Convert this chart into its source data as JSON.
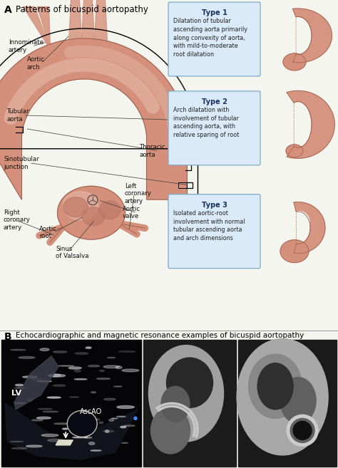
{
  "panel_A_label": "A",
  "panel_A_title": "Patterns of bicuspid aortopathy",
  "panel_B_label": "B",
  "panel_B_title": "Echocardiographic and magnetic resonance examples of bicuspid aortopathy",
  "type1_title": "Type 1",
  "type1_text": "Dilatation of tubular\nascending aorta primarily\nalong convexity of aorta,\nwith mild-to-moderate\nroot dilatation",
  "type2_title": "Type 2",
  "type2_text": "Arch dilatation with\ninvolvement of tubular\nascending aorta, with\nrelative sparing of root",
  "type3_title": "Type 3",
  "type3_text": "Isolated aortic-root\ninvolvement with normal\ntubular ascending aorta\nand arch dimensions",
  "aorta_fill": "#d4907a",
  "aorta_light": "#e8bfb0",
  "aorta_edge": "#9b6050",
  "label_color": "#111111",
  "box_fill": "#daeaf8",
  "box_edge": "#7aaac8",
  "type_title_color": "#1a3060",
  "bg_color": "#f5f5f0",
  "lv_label": "LV",
  "ascao_label": "AscAO"
}
